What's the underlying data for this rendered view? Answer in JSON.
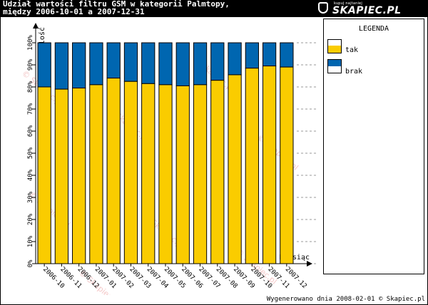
{
  "header": {
    "title_line1": "Udział wartości filtru GSM w kategorii Palmtopy,",
    "title_line2": "między 2006-10-01 a 2007-12-31"
  },
  "logo": {
    "tagline": "kupuj najtaniej",
    "text": "SKAPIEC.PL"
  },
  "legend": {
    "title": "LEGENDA"
  },
  "footer": {
    "text": "Wygenerowano dnia 2008-02-01 © Skapiec.pl"
  },
  "colors": {
    "tak": "#FACC00",
    "brak": "#0066B0"
  },
  "chart_data": {
    "type": "bar",
    "stacked": true,
    "percent": true,
    "title": "Udział wartości filtru GSM w kategorii Palmtopy, między 2006-10-01 a 2007-12-31",
    "xlabel": "Miesiąc",
    "ylabel": "Ilość",
    "ylim": [
      0,
      100
    ],
    "yticks": [
      "0%",
      "10%",
      "20%",
      "30%",
      "40%",
      "50%",
      "60%",
      "70%",
      "80%",
      "90%",
      "100%"
    ],
    "grid": false,
    "legend_position": "right",
    "categories": [
      "2006-10",
      "2006-11",
      "2006-12",
      "2007-01",
      "2007-02",
      "2007-03",
      "2007-04",
      "2007-05",
      "2007-06",
      "2007-07",
      "2007-08",
      "2007-09",
      "2007-10",
      "2007-11",
      "2007-12"
    ],
    "series": [
      {
        "name": "tak",
        "values": [
          80,
          79,
          79.5,
          81,
          84,
          82.5,
          81.5,
          81,
          80.5,
          81,
          83,
          85.5,
          88.5,
          89.5,
          89
        ]
      },
      {
        "name": "brak",
        "values": [
          20,
          21,
          20.5,
          19,
          16,
          17.5,
          18.5,
          19,
          19.5,
          19,
          17,
          14.5,
          11.5,
          10.5,
          11
        ]
      }
    ]
  }
}
